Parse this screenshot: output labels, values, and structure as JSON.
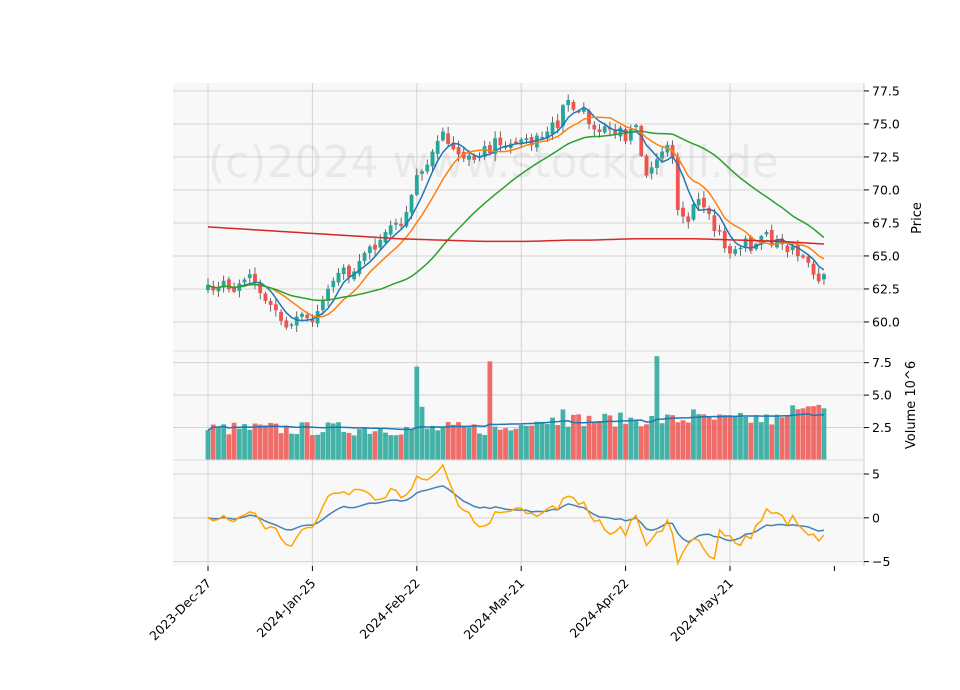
{
  "chart_data": {
    "type": "candlestick",
    "watermark": "(c)2024 www.stockdrill.de",
    "x_tick_labels": [
      "2023-Dec-27",
      "2024-Jan-25",
      "2024-Feb-22",
      "2024-Mar-21",
      "2024-Apr-22",
      "2024-May-21"
    ],
    "x_tick_indices": [
      0,
      20,
      40,
      60,
      80,
      100
    ],
    "price_panel": {
      "ylabel": "Price",
      "yticks": [
        60.0,
        62.5,
        65.0,
        67.5,
        70.0,
        72.5,
        75.0,
        77.5
      ],
      "ylim": [
        57.8,
        78.1
      ],
      "close_start": 62.6,
      "closes": [
        62.8,
        62.4,
        62.6,
        63.1,
        62.5,
        62.3,
        62.9,
        63.2,
        63.6,
        63.0,
        62.2,
        61.6,
        61.3,
        60.9,
        60.1,
        59.6,
        59.8,
        60.4,
        60.6,
        60.3,
        60.0,
        60.8,
        61.6,
        62.5,
        63.1,
        63.7,
        64.1,
        63.4,
        63.8,
        64.6,
        65.2,
        65.7,
        65.5,
        66.2,
        66.8,
        67.3,
        67.5,
        67.3,
        68.3,
        69.6,
        71.1,
        71.4,
        71.9,
        72.9,
        73.7,
        74.4,
        73.5,
        73.1,
        72.7,
        72.4,
        72.6,
        72.3,
        72.5,
        73.3,
        72.8,
        73.9,
        73.4,
        73.2,
        73.5,
        73.6,
        73.8,
        73.9,
        73.4,
        74.1,
        74.0,
        74.4,
        75.1,
        74.7,
        76.4,
        76.8,
        76.1,
        75.9,
        76.1,
        75.0,
        74.6,
        74.4,
        74.8,
        74.6,
        74.2,
        74.7,
        73.7,
        74.6,
        74.9,
        72.6,
        71.1,
        71.7,
        72.3,
        72.9,
        73.4,
        72.4,
        68.5,
        68.0,
        67.6,
        68.9,
        69.3,
        68.7,
        68.2,
        66.9,
        66.9,
        65.6,
        65.2,
        65.5,
        65.6,
        66.3,
        65.4,
        65.9,
        66.5,
        66.8,
        65.8,
        66.2,
        65.9,
        65.3,
        65.7,
        65.0,
        64.9,
        64.5,
        63.6,
        63.1,
        63.6
      ],
      "moving_averages": [
        {
          "period": 5,
          "color": "#1f77b4"
        },
        {
          "period": 10,
          "color": "#ff7f0e"
        },
        {
          "period": 30,
          "color": "#2ca02c"
        },
        {
          "period": 200,
          "color": "#d62728"
        }
      ],
      "ma200_values": [
        67.2,
        67.1,
        67.0,
        66.9,
        66.8,
        66.7,
        66.6,
        66.5,
        66.4,
        66.3,
        66.25,
        66.2,
        66.15,
        66.1,
        66.1,
        66.1,
        66.15,
        66.2,
        66.2,
        66.25,
        66.3,
        66.3,
        66.3,
        66.3,
        66.25,
        66.2,
        66.15,
        66.1,
        66.0,
        65.9
      ],
      "up_color": "#26a69a",
      "down_color": "#ef5350"
    },
    "volume_panel": {
      "ylabel": "Volume  10^6",
      "yticks": [
        2.5,
        5.0,
        7.5
      ],
      "ylim": [
        0,
        8.4
      ],
      "moving_average_color": "#1f77b4",
      "up_color": "#26a69a",
      "down_color": "#ef5350"
    },
    "indicator_panel": {
      "yticks": [
        -5,
        0,
        5
      ],
      "ylim": [
        -5.5,
        6.6
      ],
      "series": [
        {
          "color": "#4682b4"
        },
        {
          "color": "#ffa500"
        }
      ]
    }
  }
}
